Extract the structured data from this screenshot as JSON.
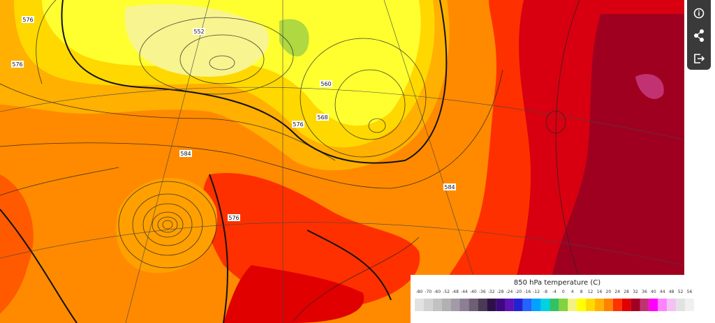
{
  "legend": {
    "title": "850 hPa temperature (C)",
    "ticks": [
      -80,
      -70,
      -60,
      -52,
      -48,
      -44,
      -40,
      -36,
      -32,
      -28,
      -24,
      -20,
      -16,
      -12,
      -8,
      -4,
      0,
      4,
      8,
      12,
      16,
      20,
      24,
      28,
      32,
      36,
      40,
      44,
      48,
      52,
      56
    ],
    "colors": [
      "#e2e2e2",
      "#d2d2d2",
      "#c2c2c2",
      "#b2b0b4",
      "#a39aa8",
      "#8c7f92",
      "#6e5f74",
      "#4c3a54",
      "#2e1048",
      "#3c0a7c",
      "#5c12b4",
      "#2222d2",
      "#2264ff",
      "#00a2ff",
      "#00d2e2",
      "#32c262",
      "#82d242",
      "#f2f282",
      "#ffff00",
      "#ffda00",
      "#ffb200",
      "#ff8200",
      "#ff3200",
      "#e00000",
      "#a20022",
      "#c23272",
      "#ff00ff",
      "#ff82ff",
      "#f2c2f2",
      "#e2e2e2",
      "#f0f0f0"
    ]
  },
  "map": {
    "contour_labels": [
      "552",
      "576",
      "560",
      "568",
      "576",
      "584",
      "584",
      "576",
      "576"
    ]
  }
}
